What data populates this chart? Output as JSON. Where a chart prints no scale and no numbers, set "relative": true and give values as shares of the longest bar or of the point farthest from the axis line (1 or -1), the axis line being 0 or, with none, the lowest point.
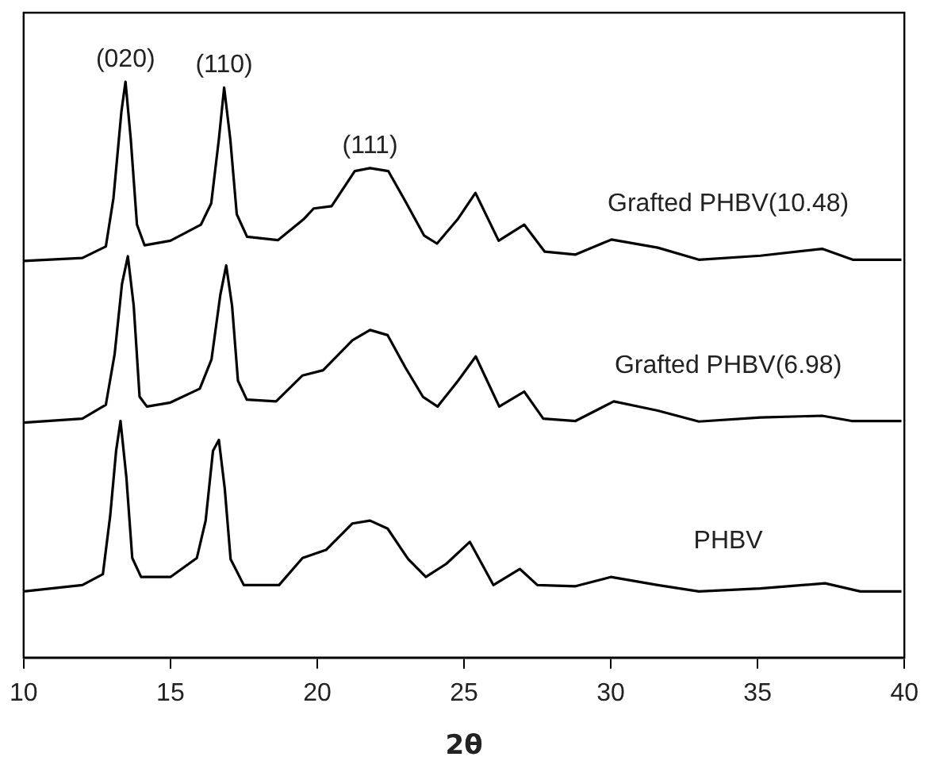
{
  "chart_data": {
    "type": "line",
    "relative": true,
    "xlabel": "2θ",
    "xlim": [
      10,
      40
    ],
    "xticks": [
      10,
      15,
      20,
      25,
      30,
      35,
      40
    ],
    "grid": false,
    "legend": false,
    "marker": "none",
    "line_style": "solid",
    "tick_labels": "x",
    "annotations": [
      {
        "text": "(020)",
        "x": 13.47,
        "y": 1.0
      },
      {
        "text": "(110)",
        "x": 16.83,
        "y": 0.99
      },
      {
        "text": "(111)",
        "x": 21.8,
        "y": 0.85
      }
    ],
    "series": [
      {
        "name": "Grafted PHBV(10.48)",
        "color": "#000000",
        "x": [
          10.0,
          12.0,
          12.8,
          13.06,
          13.33,
          13.47,
          13.65,
          13.86,
          14.12,
          15.0,
          16.04,
          16.39,
          16.65,
          16.83,
          17.04,
          17.26,
          17.61,
          18.66,
          19.53,
          19.88,
          20.49,
          21.28,
          21.8,
          22.42,
          23.03,
          23.64,
          24.08,
          24.78,
          25.39,
          26.18,
          27.05,
          27.75,
          28.8,
          30.02,
          31.6,
          33.0,
          35.1,
          37.2,
          38.24,
          39.9
        ],
        "values": [
          0.689,
          0.694,
          0.714,
          0.798,
          0.948,
          1.0,
          0.9,
          0.752,
          0.716,
          0.724,
          0.752,
          0.789,
          0.9,
          0.99,
          0.9,
          0.77,
          0.731,
          0.725,
          0.761,
          0.78,
          0.784,
          0.845,
          0.85,
          0.845,
          0.79,
          0.733,
          0.719,
          0.761,
          0.807,
          0.724,
          0.752,
          0.705,
          0.7,
          0.726,
          0.712,
          0.691,
          0.698,
          0.71,
          0.691,
          0.691
        ]
      },
      {
        "name": "Grafted PHBV(6.98)",
        "color": "#000000",
        "x": [
          10.0,
          12.0,
          12.8,
          13.1,
          13.35,
          13.55,
          13.75,
          13.95,
          14.2,
          15.0,
          16.0,
          16.4,
          16.7,
          16.9,
          17.1,
          17.3,
          17.6,
          18.6,
          19.5,
          20.2,
          21.2,
          21.8,
          22.4,
          23.0,
          23.6,
          24.1,
          24.8,
          25.4,
          26.2,
          27.05,
          27.7,
          28.8,
          30.1,
          31.6,
          33.0,
          35.1,
          37.2,
          38.2,
          39.9
        ],
        "values": [
          0.408,
          0.415,
          0.439,
          0.527,
          0.649,
          0.697,
          0.611,
          0.453,
          0.436,
          0.443,
          0.467,
          0.518,
          0.63,
          0.681,
          0.611,
          0.481,
          0.448,
          0.445,
          0.49,
          0.499,
          0.551,
          0.569,
          0.56,
          0.504,
          0.453,
          0.436,
          0.481,
          0.523,
          0.436,
          0.462,
          0.415,
          0.411,
          0.445,
          0.429,
          0.41,
          0.417,
          0.42,
          0.411,
          0.411
        ]
      },
      {
        "name": "PHBV",
        "color": "#000000",
        "x": [
          10.0,
          12.0,
          12.7,
          12.95,
          13.15,
          13.3,
          13.5,
          13.7,
          14.0,
          15.0,
          15.9,
          16.2,
          16.45,
          16.65,
          16.85,
          17.05,
          17.5,
          18.7,
          19.5,
          20.3,
          21.2,
          21.8,
          22.4,
          23.1,
          23.7,
          24.4,
          25.2,
          26.0,
          26.9,
          27.5,
          28.8,
          30.0,
          31.6,
          33.0,
          35.1,
          37.3,
          38.5,
          39.9
        ],
        "values": [
          0.115,
          0.126,
          0.145,
          0.247,
          0.359,
          0.411,
          0.313,
          0.173,
          0.14,
          0.14,
          0.173,
          0.238,
          0.359,
          0.378,
          0.294,
          0.171,
          0.126,
          0.126,
          0.173,
          0.187,
          0.233,
          0.238,
          0.224,
          0.171,
          0.14,
          0.163,
          0.201,
          0.126,
          0.154,
          0.126,
          0.124,
          0.14,
          0.126,
          0.115,
          0.12,
          0.129,
          0.115,
          0.115
        ]
      }
    ]
  }
}
